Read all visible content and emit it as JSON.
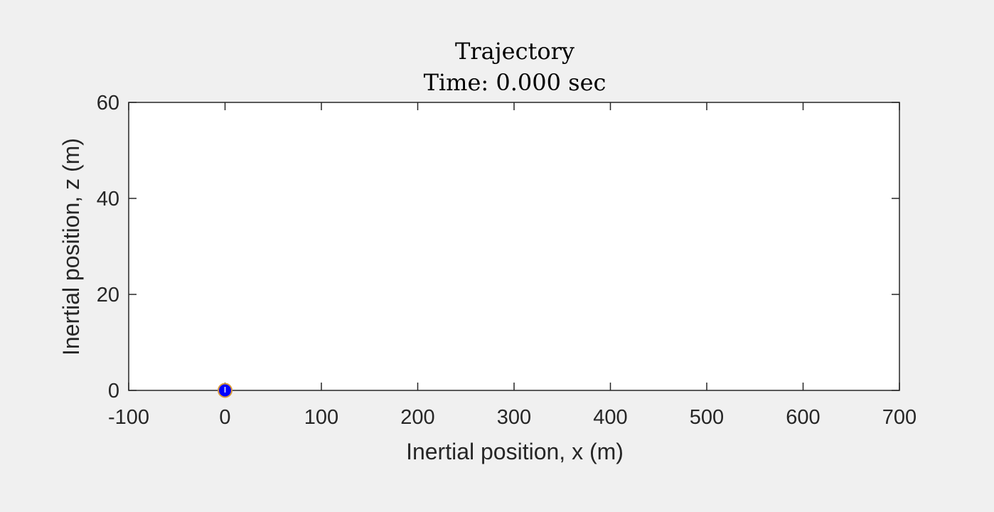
{
  "chart_data": {
    "type": "scatter",
    "title": "Trajectory",
    "subtitle": "Time: 0.000 sec",
    "xlabel": "Inertial position, x (m)",
    "ylabel": "Inertial position, z (m)",
    "xlim": [
      -100,
      700
    ],
    "ylim": [
      0,
      60
    ],
    "xticks": [
      -100,
      0,
      100,
      200,
      300,
      400,
      500,
      600,
      700
    ],
    "yticks": [
      0,
      20,
      40,
      60
    ],
    "grid": false,
    "series": [
      {
        "points": [
          {
            "x": 0,
            "y": 0
          }
        ],
        "color": "#0000ff",
        "edge_color": "#d99a3c"
      }
    ]
  }
}
